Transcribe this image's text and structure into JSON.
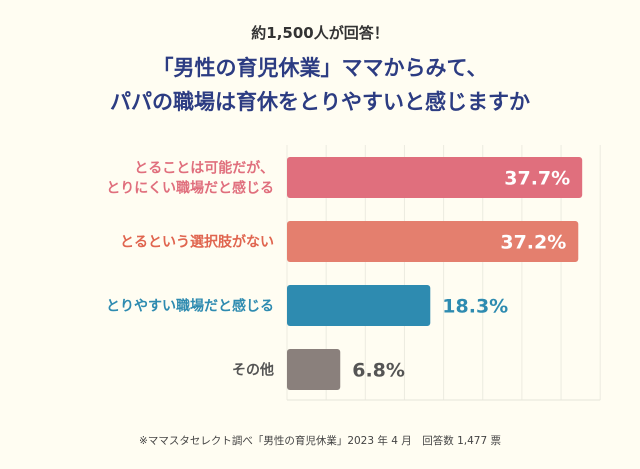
{
  "chart_data": {
    "type": "bar",
    "orientation": "horizontal",
    "subtitle": "約1,500人が回答！",
    "title_lines": [
      "「男性の育児休業」ママからみて、",
      "パパの職場は育休をとりやすいと感じますか"
    ],
    "categories": [
      [
        "とることは可能だが、",
        "とりにくい職場だと感じる"
      ],
      [
        "とるという選択肢がない"
      ],
      [
        "とりやすい職場だと感じる"
      ],
      [
        "その他"
      ]
    ],
    "values": [
      37.7,
      37.2,
      18.3,
      6.8
    ],
    "value_labels": [
      "37.7%",
      "37.2%",
      "18.3%",
      "6.8%"
    ],
    "colors": [
      "#e06f7d",
      "#e47f6e",
      "#2e8bb0",
      "#8a807c"
    ],
    "label_colors": [
      "#e06f7d",
      "#e0654f",
      "#2e8bb0",
      "#555555"
    ],
    "xlim": [
      0,
      40
    ],
    "grid": true,
    "source": "※ママスタセレクト調べ「男性の育児休業」2023 年 4 月　回答数 1,477 票"
  }
}
